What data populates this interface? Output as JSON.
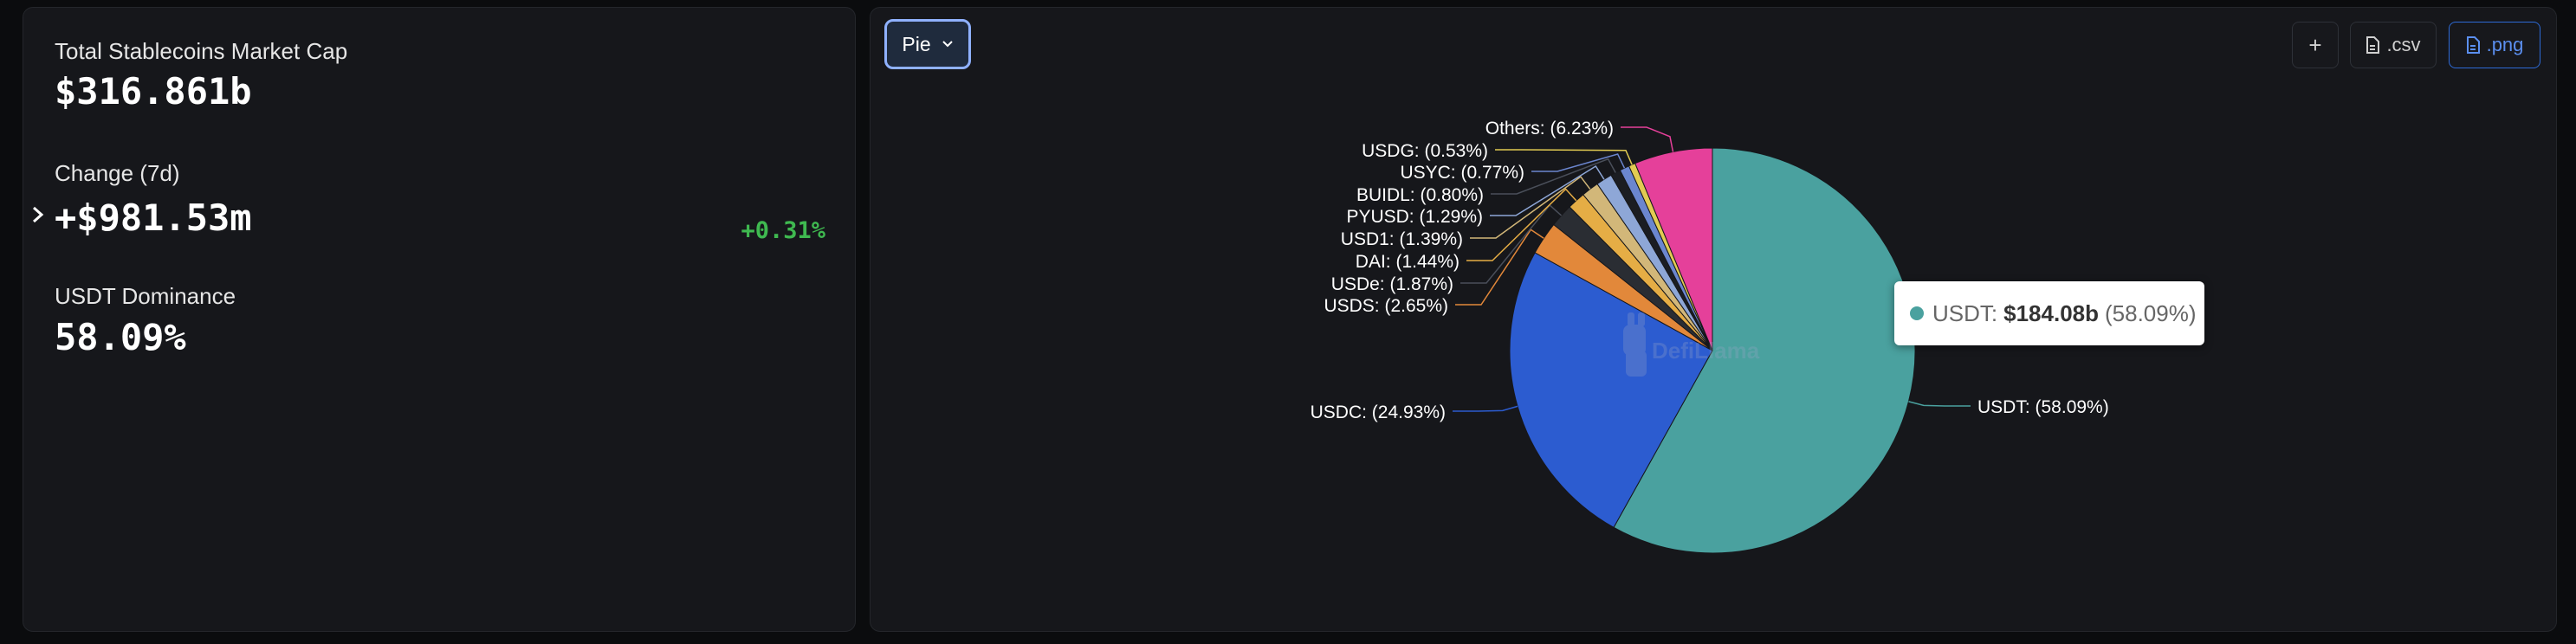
{
  "stats": {
    "total_label": "Total Stablecoins Market Cap",
    "total_value": "$316.861b",
    "change_label": "Change (7d)",
    "change_value": "+$981.53m",
    "change_pct": "+0.31%",
    "dominance_label": "USDT Dominance",
    "dominance_value": "58.09%"
  },
  "toolbar": {
    "chart_type_label": "Pie",
    "add_label": "+",
    "csv_label": ".csv",
    "png_label": ".png"
  },
  "tooltip": {
    "name": "USDT:",
    "value": "$184.08b",
    "pct": "(58.09%)"
  },
  "watermark": "DefiLlama",
  "chart_data": {
    "type": "pie",
    "unit": "%",
    "slices": [
      {
        "name": "USDT",
        "value": 58.09,
        "label": "USDT: (58.09%)",
        "color": "#4aa19f"
      },
      {
        "name": "USDC",
        "value": 24.93,
        "label": "USDC: (24.93%)",
        "color": "#2c5cd0"
      },
      {
        "name": "USDS",
        "value": 2.65,
        "label": "USDS: (2.65%)",
        "color": "#e2883a"
      },
      {
        "name": "USDe",
        "value": 1.87,
        "label": "USDe: (1.87%)",
        "color": "#2a2d33"
      },
      {
        "name": "DAI",
        "value": 1.44,
        "label": "DAI: (1.44%)",
        "color": "#e5ad45"
      },
      {
        "name": "USD1",
        "value": 1.39,
        "label": "USD1: (1.39%)",
        "color": "#d2b779"
      },
      {
        "name": "PYUSD",
        "value": 1.29,
        "label": "PYUSD: (1.29%)",
        "color": "#8ea7d7"
      },
      {
        "name": "BUIDL",
        "value": 0.8,
        "label": "BUIDL: (0.80%)",
        "color": "#1b1d22"
      },
      {
        "name": "USYC",
        "value": 0.77,
        "label": "USYC: (0.77%)",
        "color": "#6b86cf"
      },
      {
        "name": "USDG",
        "value": 0.53,
        "label": "USDG: (0.53%)",
        "color": "#e2cb52"
      },
      {
        "name": "Others",
        "value": 6.23,
        "label": "Others: (6.23%)",
        "color": "#e5409a"
      }
    ]
  }
}
